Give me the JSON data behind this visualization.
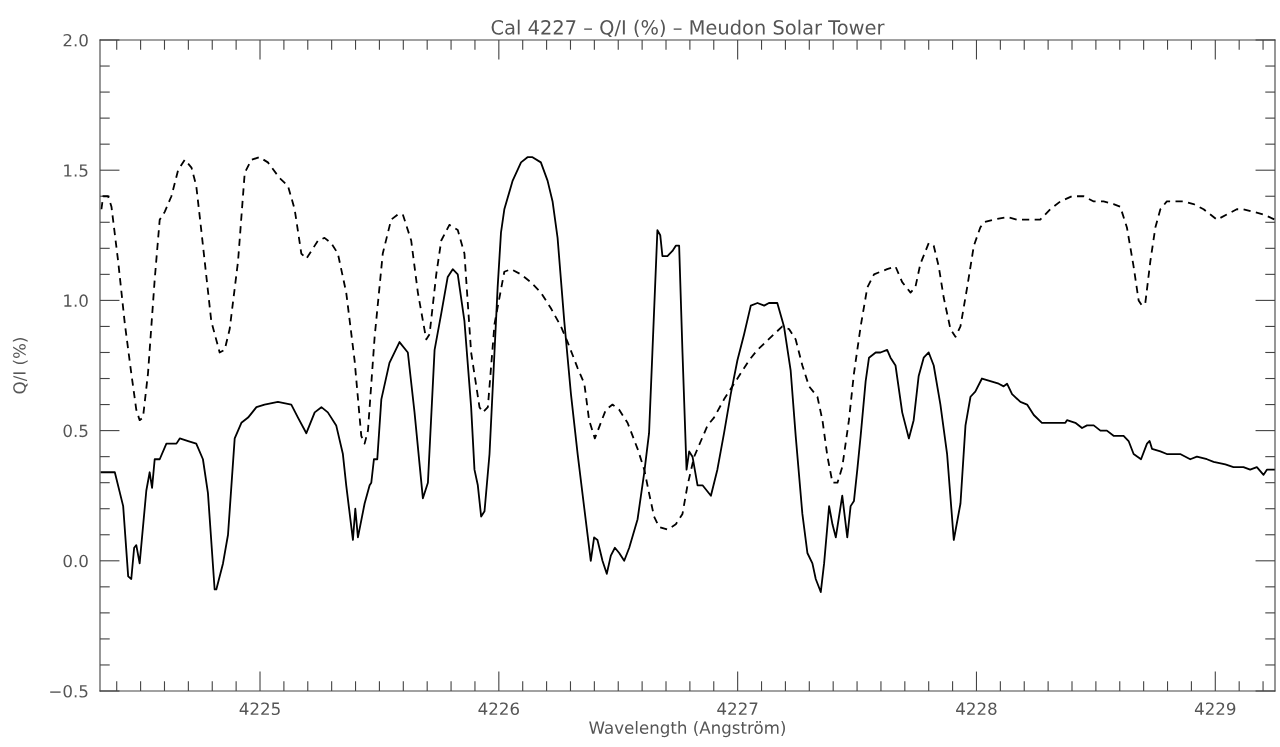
{
  "chart_data": {
    "type": "line",
    "title": "Cal 4227 – Q/I (%) – Meudon Solar Tower",
    "xlabel": "Wavelength (Angström)",
    "ylabel": "Q/I (%)",
    "xlim": [
      4224.33,
      4229.25
    ],
    "ylim": [
      -0.5,
      2.0
    ],
    "xticks": [
      4225,
      4226,
      4227,
      4228,
      4229
    ],
    "yticks": [
      {
        "value": -0.5,
        "label": "−0.5"
      },
      {
        "value": 0,
        "label": "0.0"
      },
      {
        "value": 0.5,
        "label": "0.5"
      },
      {
        "value": 1,
        "label": "1.0"
      },
      {
        "value": 1.5,
        "label": "1.5"
      },
      {
        "value": 2,
        "label": "2.0"
      }
    ],
    "grid": false,
    "legend": false,
    "marker": "none",
    "series": [
      {
        "color": "#000000",
        "line_style": "solid",
        "x": [
          4224.336,
          4224.392,
          4224.427,
          4224.448,
          4224.461,
          4224.473,
          4224.482,
          4224.496,
          4224.524,
          4224.538,
          4224.548,
          4224.559,
          4224.58,
          4224.608,
          4224.65,
          4224.664,
          4224.699,
          4224.733,
          4224.761,
          4224.782,
          4224.81,
          4224.817,
          4224.845,
          4224.866,
          4224.894,
          4224.922,
          4224.95,
          4224.985,
          4225.019,
          4225.075,
          4225.131,
          4225.159,
          4225.194,
          4225.229,
          4225.257,
          4225.284,
          4225.319,
          4225.347,
          4225.361,
          4225.389,
          4225.399,
          4225.41,
          4225.438,
          4225.459,
          4225.466,
          4225.477,
          4225.491,
          4225.508,
          4225.542,
          4225.584,
          4225.619,
          4225.647,
          4225.682,
          4225.703,
          4225.731,
          4225.759,
          4225.786,
          4225.807,
          4225.828,
          4225.856,
          4225.884,
          4225.898,
          4225.912,
          4225.926,
          4225.94,
          4225.961,
          4225.995,
          4226.009,
          4226.023,
          4226.058,
          4226.093,
          4226.12,
          4226.141,
          4226.176,
          4226.204,
          4226.225,
          4226.246,
          4226.274,
          4226.302,
          4226.33,
          4226.358,
          4226.385,
          4226.399,
          4226.413,
          4226.434,
          4226.452,
          4226.469,
          4226.486,
          4226.504,
          4226.525,
          4226.546,
          4226.581,
          4226.609,
          4226.629,
          4226.643,
          4226.664,
          4226.676,
          4226.685,
          4226.706,
          4226.727,
          4226.741,
          4226.755,
          4226.769,
          4226.786,
          4226.797,
          4226.811,
          4226.832,
          4226.853,
          4226.888,
          4226.915,
          4226.943,
          4226.971,
          4226.999,
          4227.027,
          4227.055,
          4227.083,
          4227.111,
          4227.131,
          4227.166,
          4227.194,
          4227.222,
          4227.243,
          4227.271,
          4227.292,
          4227.313,
          4227.327,
          4227.348,
          4227.362,
          4227.383,
          4227.397,
          4227.411,
          4227.438,
          4227.459,
          4227.473,
          4227.487,
          4227.501,
          4227.515,
          4227.536,
          4227.55,
          4227.578,
          4227.598,
          4227.626,
          4227.64,
          4227.661,
          4227.689,
          4227.717,
          4227.737,
          4227.758,
          4227.779,
          4227.8,
          4227.821,
          4227.849,
          4227.877,
          4227.905,
          4227.933,
          4227.954,
          4227.975,
          4227.995,
          4228.023,
          4228.058,
          4228.093,
          4228.114,
          4228.128,
          4228.149,
          4228.184,
          4228.212,
          4228.24,
          4228.274,
          4228.309,
          4228.372,
          4228.379,
          4228.414,
          4228.442,
          4228.463,
          4228.491,
          4228.519,
          4228.546,
          4228.574,
          4228.616,
          4228.637,
          4228.658,
          4228.689,
          4228.714,
          4228.725,
          4228.735,
          4228.77,
          4228.797,
          4228.853,
          4228.895,
          4228.923,
          4228.965,
          4228.993,
          4229.042,
          4229.076,
          4229.118,
          4229.146,
          4229.174,
          4229.202,
          4229.216,
          4229.25
        ],
        "values": [
          0.34,
          0.34,
          0.21,
          -0.06,
          -0.07,
          0.05,
          0.06,
          -0.01,
          0.27,
          0.34,
          0.28,
          0.39,
          0.39,
          0.45,
          0.45,
          0.47,
          0.46,
          0.45,
          0.39,
          0.26,
          -0.11,
          -0.11,
          -0.01,
          0.1,
          0.47,
          0.53,
          0.55,
          0.59,
          0.6,
          0.61,
          0.6,
          0.55,
          0.49,
          0.57,
          0.59,
          0.57,
          0.52,
          0.41,
          0.29,
          0.08,
          0.2,
          0.09,
          0.22,
          0.29,
          0.3,
          0.39,
          0.39,
          0.62,
          0.76,
          0.84,
          0.8,
          0.57,
          0.24,
          0.3,
          0.81,
          0.95,
          1.09,
          1.12,
          1.1,
          0.92,
          0.59,
          0.35,
          0.29,
          0.17,
          0.19,
          0.41,
          1.05,
          1.26,
          1.35,
          1.46,
          1.53,
          1.55,
          1.55,
          1.53,
          1.46,
          1.38,
          1.24,
          0.92,
          0.64,
          0.41,
          0.2,
          0.0,
          0.09,
          0.08,
          0.0,
          -0.05,
          0.02,
          0.05,
          0.03,
          0.0,
          0.05,
          0.16,
          0.34,
          0.49,
          0.8,
          1.27,
          1.25,
          1.17,
          1.17,
          1.19,
          1.21,
          1.21,
          0.8,
          0.35,
          0.42,
          0.4,
          0.29,
          0.29,
          0.25,
          0.35,
          0.49,
          0.64,
          0.77,
          0.87,
          0.98,
          0.99,
          0.98,
          0.99,
          0.99,
          0.9,
          0.73,
          0.48,
          0.18,
          0.03,
          -0.01,
          -0.07,
          -0.12,
          -0.01,
          0.21,
          0.14,
          0.09,
          0.25,
          0.09,
          0.21,
          0.23,
          0.35,
          0.48,
          0.69,
          0.78,
          0.8,
          0.8,
          0.81,
          0.78,
          0.75,
          0.57,
          0.47,
          0.54,
          0.71,
          0.78,
          0.8,
          0.75,
          0.6,
          0.41,
          0.08,
          0.22,
          0.52,
          0.63,
          0.65,
          0.7,
          0.69,
          0.68,
          0.67,
          0.68,
          0.64,
          0.61,
          0.6,
          0.56,
          0.53,
          0.53,
          0.53,
          0.54,
          0.53,
          0.51,
          0.52,
          0.52,
          0.5,
          0.5,
          0.48,
          0.48,
          0.46,
          0.41,
          0.39,
          0.45,
          0.46,
          0.43,
          0.42,
          0.41,
          0.41,
          0.39,
          0.4,
          0.39,
          0.38,
          0.37,
          0.36,
          0.36,
          0.35,
          0.36,
          0.33,
          0.35,
          0.35
        ]
      },
      {
        "color": "#000000",
        "line_style": "dashed",
        "x": [
          4224.336,
          4224.343,
          4224.364,
          4224.378,
          4224.406,
          4224.434,
          4224.461,
          4224.482,
          4224.496,
          4224.51,
          4224.531,
          4224.559,
          4224.58,
          4224.601,
          4224.629,
          4224.657,
          4224.685,
          4224.713,
          4224.733,
          4224.754,
          4224.796,
          4224.831,
          4224.852,
          4224.873,
          4224.908,
          4224.936,
          4224.964,
          4224.998,
          4225.033,
          4225.082,
          4225.117,
          4225.145,
          4225.173,
          4225.194,
          4225.215,
          4225.243,
          4225.27,
          4225.298,
          4225.326,
          4225.361,
          4225.396,
          4225.424,
          4225.438,
          4225.452,
          4225.48,
          4225.514,
          4225.549,
          4225.577,
          4225.598,
          4225.633,
          4225.661,
          4225.696,
          4225.71,
          4225.738,
          4225.759,
          4225.793,
          4225.828,
          4225.856,
          4225.884,
          4225.919,
          4225.933,
          4225.954,
          4225.982,
          4226.023,
          4226.051,
          4226.093,
          4226.134,
          4226.176,
          4226.218,
          4226.26,
          4226.288,
          4226.33,
          4226.358,
          4226.378,
          4226.402,
          4226.427,
          4226.448,
          4226.476,
          4226.504,
          4226.539,
          4226.581,
          4226.609,
          4226.629,
          4226.65,
          4226.671,
          4226.706,
          4226.741,
          4226.769,
          4226.79,
          4226.818,
          4226.846,
          4226.874,
          4226.901,
          4226.943,
          4226.978,
          4227.013,
          4227.048,
          4227.083,
          4227.118,
          4227.152,
          4227.187,
          4227.215,
          4227.243,
          4227.271,
          4227.299,
          4227.334,
          4227.355,
          4227.376,
          4227.397,
          4227.418,
          4227.438,
          4227.466,
          4227.487,
          4227.515,
          4227.543,
          4227.571,
          4227.598,
          4227.626,
          4227.661,
          4227.689,
          4227.724,
          4227.744,
          4227.765,
          4227.8,
          4227.821,
          4227.842,
          4227.863,
          4227.891,
          4227.912,
          4227.933,
          4227.961,
          4227.989,
          4228.016,
          4228.03,
          4228.072,
          4228.128,
          4228.17,
          4228.212,
          4228.267,
          4228.309,
          4228.351,
          4228.4,
          4228.449,
          4228.491,
          4228.532,
          4228.574,
          4228.602,
          4228.63,
          4228.658,
          4228.679,
          4228.693,
          4228.707,
          4228.728,
          4228.749,
          4228.77,
          4228.797,
          4228.832,
          4228.867,
          4228.909,
          4228.951,
          4229.007,
          4229.048,
          4229.09,
          4229.118,
          4229.16,
          4229.202,
          4229.25
        ],
        "values": [
          1.35,
          1.4,
          1.4,
          1.36,
          1.15,
          0.91,
          0.72,
          0.58,
          0.54,
          0.55,
          0.72,
          1.08,
          1.31,
          1.34,
          1.4,
          1.5,
          1.54,
          1.51,
          1.44,
          1.27,
          0.92,
          0.8,
          0.81,
          0.89,
          1.15,
          1.49,
          1.54,
          1.55,
          1.53,
          1.47,
          1.44,
          1.35,
          1.18,
          1.16,
          1.19,
          1.23,
          1.24,
          1.22,
          1.18,
          1.03,
          0.77,
          0.48,
          0.45,
          0.5,
          0.86,
          1.18,
          1.31,
          1.33,
          1.33,
          1.23,
          1.03,
          0.85,
          0.87,
          1.1,
          1.23,
          1.29,
          1.27,
          1.18,
          0.8,
          0.59,
          0.57,
          0.59,
          0.91,
          1.11,
          1.12,
          1.1,
          1.07,
          1.03,
          0.97,
          0.9,
          0.84,
          0.74,
          0.68,
          0.54,
          0.47,
          0.53,
          0.58,
          0.6,
          0.58,
          0.53,
          0.43,
          0.35,
          0.26,
          0.17,
          0.13,
          0.12,
          0.14,
          0.18,
          0.29,
          0.4,
          0.46,
          0.52,
          0.55,
          0.62,
          0.67,
          0.72,
          0.77,
          0.81,
          0.84,
          0.87,
          0.9,
          0.89,
          0.85,
          0.75,
          0.67,
          0.63,
          0.54,
          0.4,
          0.3,
          0.3,
          0.36,
          0.54,
          0.72,
          0.9,
          1.05,
          1.1,
          1.11,
          1.12,
          1.13,
          1.07,
          1.03,
          1.05,
          1.14,
          1.22,
          1.21,
          1.13,
          1.01,
          0.89,
          0.86,
          0.9,
          1.05,
          1.21,
          1.28,
          1.3,
          1.31,
          1.32,
          1.31,
          1.31,
          1.31,
          1.35,
          1.38,
          1.4,
          1.4,
          1.38,
          1.38,
          1.37,
          1.36,
          1.28,
          1.13,
          1.0,
          0.98,
          0.99,
          1.15,
          1.28,
          1.35,
          1.38,
          1.38,
          1.38,
          1.37,
          1.35,
          1.31,
          1.33,
          1.35,
          1.35,
          1.34,
          1.33,
          1.31
        ]
      }
    ]
  }
}
